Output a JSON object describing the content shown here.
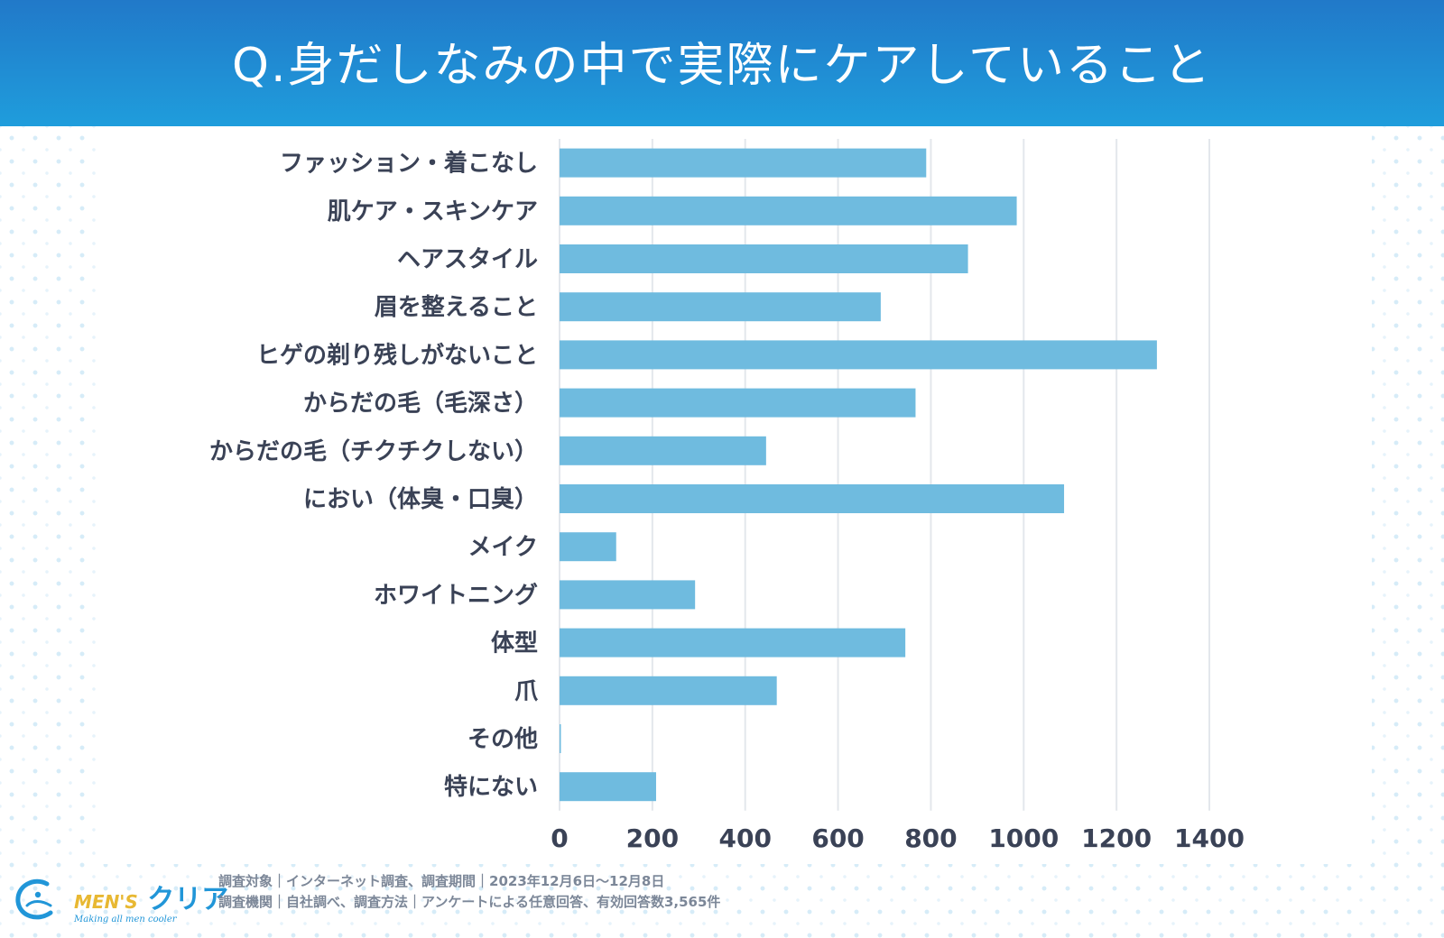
{
  "header": {
    "title": "Q.身だしなみの中で実際にケアしていること"
  },
  "chart_data": {
    "type": "bar",
    "orientation": "horizontal",
    "title": "Q.身だしなみの中で実際にケアしていること",
    "categories": [
      "ファッション・着こなし",
      "肌ケア・スキンケア",
      "ヘアスタイル",
      "眉を整えること",
      "ヒゲの剃り残しがないこと",
      "からだの毛（毛深さ）",
      "からだの毛（チクチクしない）",
      "におい（体臭・口臭）",
      "メイク",
      "ホワイトニング",
      "体型",
      "爪",
      "その他",
      "特にない"
    ],
    "values": [
      790,
      985,
      880,
      692,
      1287,
      767,
      445,
      1087,
      122,
      292,
      745,
      468,
      2,
      208
    ],
    "xlim": [
      0,
      1400
    ],
    "ticks": [
      "0",
      "200",
      "400",
      "600",
      "800",
      "1000",
      "1200",
      "1400"
    ],
    "tick_values": [
      0,
      200,
      400,
      600,
      800,
      1000,
      1200,
      1400
    ],
    "grid": true,
    "bar_color": "#6fbbdf",
    "grid_color": "#e3e7ec",
    "xlabel": "",
    "ylabel": ""
  },
  "footer": {
    "logo_mens": "MEN'S",
    "logo_clear": "クリア",
    "logo_tagline": "Making all men cooler",
    "note1": "調査対象｜インターネット調査、調査期間｜2023年12月6日〜12月8日",
    "note2": "調査機関｜自社調べ、調査方法｜アンケートによる任意回答、有効回答数3,565件"
  },
  "colors": {
    "header_top": "#2179c9",
    "header_bottom": "#1f9ddc",
    "logo_yellow": "#e8b832",
    "logo_blue": "#2196d8"
  }
}
